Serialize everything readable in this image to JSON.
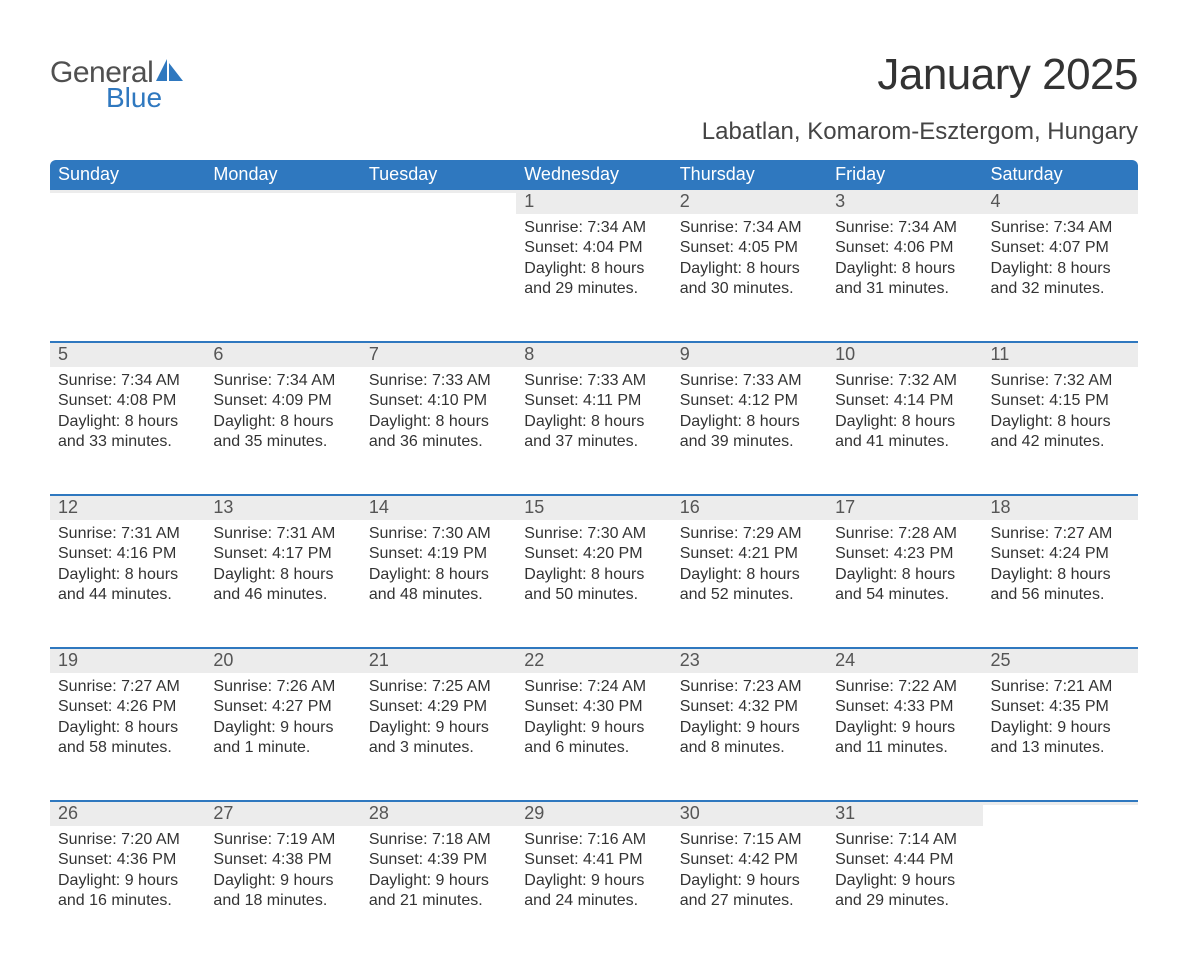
{
  "brand": {
    "general": "General",
    "blue": "Blue",
    "sail_color": "#2f78bf"
  },
  "title": "January 2025",
  "location": "Labatlan, Komarom-Esztergom, Hungary",
  "colors": {
    "header_bg": "#2f78bf",
    "header_text": "#ffffff",
    "daynum_bg": "#ececec",
    "daynum_text": "#555555",
    "body_text": "#333333",
    "row_divider": "#2f78bf",
    "page_bg": "#ffffff"
  },
  "typography": {
    "title_fontsize": 44,
    "location_fontsize": 24,
    "header_fontsize": 18,
    "daynum_fontsize": 18,
    "body_fontsize": 16
  },
  "day_headers": [
    "Sunday",
    "Monday",
    "Tuesday",
    "Wednesday",
    "Thursday",
    "Friday",
    "Saturday"
  ],
  "weeks": [
    [
      {
        "n": "",
        "sunrise": "",
        "sunset": "",
        "daylight": ""
      },
      {
        "n": "",
        "sunrise": "",
        "sunset": "",
        "daylight": ""
      },
      {
        "n": "",
        "sunrise": "",
        "sunset": "",
        "daylight": ""
      },
      {
        "n": "1",
        "sunrise": "Sunrise: 7:34 AM",
        "sunset": "Sunset: 4:04 PM",
        "daylight": "Daylight: 8 hours and 29 minutes."
      },
      {
        "n": "2",
        "sunrise": "Sunrise: 7:34 AM",
        "sunset": "Sunset: 4:05 PM",
        "daylight": "Daylight: 8 hours and 30 minutes."
      },
      {
        "n": "3",
        "sunrise": "Sunrise: 7:34 AM",
        "sunset": "Sunset: 4:06 PM",
        "daylight": "Daylight: 8 hours and 31 minutes."
      },
      {
        "n": "4",
        "sunrise": "Sunrise: 7:34 AM",
        "sunset": "Sunset: 4:07 PM",
        "daylight": "Daylight: 8 hours and 32 minutes."
      }
    ],
    [
      {
        "n": "5",
        "sunrise": "Sunrise: 7:34 AM",
        "sunset": "Sunset: 4:08 PM",
        "daylight": "Daylight: 8 hours and 33 minutes."
      },
      {
        "n": "6",
        "sunrise": "Sunrise: 7:34 AM",
        "sunset": "Sunset: 4:09 PM",
        "daylight": "Daylight: 8 hours and 35 minutes."
      },
      {
        "n": "7",
        "sunrise": "Sunrise: 7:33 AM",
        "sunset": "Sunset: 4:10 PM",
        "daylight": "Daylight: 8 hours and 36 minutes."
      },
      {
        "n": "8",
        "sunrise": "Sunrise: 7:33 AM",
        "sunset": "Sunset: 4:11 PM",
        "daylight": "Daylight: 8 hours and 37 minutes."
      },
      {
        "n": "9",
        "sunrise": "Sunrise: 7:33 AM",
        "sunset": "Sunset: 4:12 PM",
        "daylight": "Daylight: 8 hours and 39 minutes."
      },
      {
        "n": "10",
        "sunrise": "Sunrise: 7:32 AM",
        "sunset": "Sunset: 4:14 PM",
        "daylight": "Daylight: 8 hours and 41 minutes."
      },
      {
        "n": "11",
        "sunrise": "Sunrise: 7:32 AM",
        "sunset": "Sunset: 4:15 PM",
        "daylight": "Daylight: 8 hours and 42 minutes."
      }
    ],
    [
      {
        "n": "12",
        "sunrise": "Sunrise: 7:31 AM",
        "sunset": "Sunset: 4:16 PM",
        "daylight": "Daylight: 8 hours and 44 minutes."
      },
      {
        "n": "13",
        "sunrise": "Sunrise: 7:31 AM",
        "sunset": "Sunset: 4:17 PM",
        "daylight": "Daylight: 8 hours and 46 minutes."
      },
      {
        "n": "14",
        "sunrise": "Sunrise: 7:30 AM",
        "sunset": "Sunset: 4:19 PM",
        "daylight": "Daylight: 8 hours and 48 minutes."
      },
      {
        "n": "15",
        "sunrise": "Sunrise: 7:30 AM",
        "sunset": "Sunset: 4:20 PM",
        "daylight": "Daylight: 8 hours and 50 minutes."
      },
      {
        "n": "16",
        "sunrise": "Sunrise: 7:29 AM",
        "sunset": "Sunset: 4:21 PM",
        "daylight": "Daylight: 8 hours and 52 minutes."
      },
      {
        "n": "17",
        "sunrise": "Sunrise: 7:28 AM",
        "sunset": "Sunset: 4:23 PM",
        "daylight": "Daylight: 8 hours and 54 minutes."
      },
      {
        "n": "18",
        "sunrise": "Sunrise: 7:27 AM",
        "sunset": "Sunset: 4:24 PM",
        "daylight": "Daylight: 8 hours and 56 minutes."
      }
    ],
    [
      {
        "n": "19",
        "sunrise": "Sunrise: 7:27 AM",
        "sunset": "Sunset: 4:26 PM",
        "daylight": "Daylight: 8 hours and 58 minutes."
      },
      {
        "n": "20",
        "sunrise": "Sunrise: 7:26 AM",
        "sunset": "Sunset: 4:27 PM",
        "daylight": "Daylight: 9 hours and 1 minute."
      },
      {
        "n": "21",
        "sunrise": "Sunrise: 7:25 AM",
        "sunset": "Sunset: 4:29 PM",
        "daylight": "Daylight: 9 hours and 3 minutes."
      },
      {
        "n": "22",
        "sunrise": "Sunrise: 7:24 AM",
        "sunset": "Sunset: 4:30 PM",
        "daylight": "Daylight: 9 hours and 6 minutes."
      },
      {
        "n": "23",
        "sunrise": "Sunrise: 7:23 AM",
        "sunset": "Sunset: 4:32 PM",
        "daylight": "Daylight: 9 hours and 8 minutes."
      },
      {
        "n": "24",
        "sunrise": "Sunrise: 7:22 AM",
        "sunset": "Sunset: 4:33 PM",
        "daylight": "Daylight: 9 hours and 11 minutes."
      },
      {
        "n": "25",
        "sunrise": "Sunrise: 7:21 AM",
        "sunset": "Sunset: 4:35 PM",
        "daylight": "Daylight: 9 hours and 13 minutes."
      }
    ],
    [
      {
        "n": "26",
        "sunrise": "Sunrise: 7:20 AM",
        "sunset": "Sunset: 4:36 PM",
        "daylight": "Daylight: 9 hours and 16 minutes."
      },
      {
        "n": "27",
        "sunrise": "Sunrise: 7:19 AM",
        "sunset": "Sunset: 4:38 PM",
        "daylight": "Daylight: 9 hours and 18 minutes."
      },
      {
        "n": "28",
        "sunrise": "Sunrise: 7:18 AM",
        "sunset": "Sunset: 4:39 PM",
        "daylight": "Daylight: 9 hours and 21 minutes."
      },
      {
        "n": "29",
        "sunrise": "Sunrise: 7:16 AM",
        "sunset": "Sunset: 4:41 PM",
        "daylight": "Daylight: 9 hours and 24 minutes."
      },
      {
        "n": "30",
        "sunrise": "Sunrise: 7:15 AM",
        "sunset": "Sunset: 4:42 PM",
        "daylight": "Daylight: 9 hours and 27 minutes."
      },
      {
        "n": "31",
        "sunrise": "Sunrise: 7:14 AM",
        "sunset": "Sunset: 4:44 PM",
        "daylight": "Daylight: 9 hours and 29 minutes."
      },
      {
        "n": "",
        "sunrise": "",
        "sunset": "",
        "daylight": ""
      }
    ]
  ]
}
